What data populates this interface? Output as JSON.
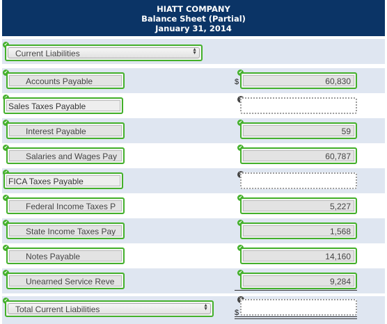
{
  "header": {
    "company": "HIATT COMPANY",
    "title": "Balance Sheet (Partial)",
    "date": "January 31, 2014"
  },
  "section_select": {
    "value": "Current Liabilities"
  },
  "rows": [
    {
      "label": "Accounts Payable",
      "value": "60,830",
      "status": "correct"
    },
    {
      "label": "Sales Taxes Payable",
      "value": "",
      "status": "incorrect"
    },
    {
      "label": "Interest Payable",
      "value": "59",
      "status": "correct"
    },
    {
      "label": "Salaries and Wages Pay",
      "value": "60,787",
      "status": "correct"
    },
    {
      "label": "FICA Taxes Payable",
      "value": "",
      "status": "incorrect"
    },
    {
      "label": "Federal Income Taxes P",
      "value": "5,227",
      "status": "correct"
    },
    {
      "label": "State Income Taxes Pay",
      "value": "1,568",
      "status": "correct"
    },
    {
      "label": "Notes Payable",
      "value": "14,160",
      "status": "correct"
    },
    {
      "label": "Unearned Service Reve",
      "value": "9,284",
      "status": "correct"
    }
  ],
  "total_select": {
    "value": "Total Current Liabilities",
    "amount": "",
    "status": "incorrect"
  },
  "symbols": {
    "dollar": "$",
    "check": "✔",
    "cross": "✕",
    "arrows_up": "▲",
    "arrows_down": "▼"
  },
  "colors": {
    "header_bg": "#0b3466",
    "correct": "#43b02a",
    "row_shade": "#dfe6f1"
  }
}
